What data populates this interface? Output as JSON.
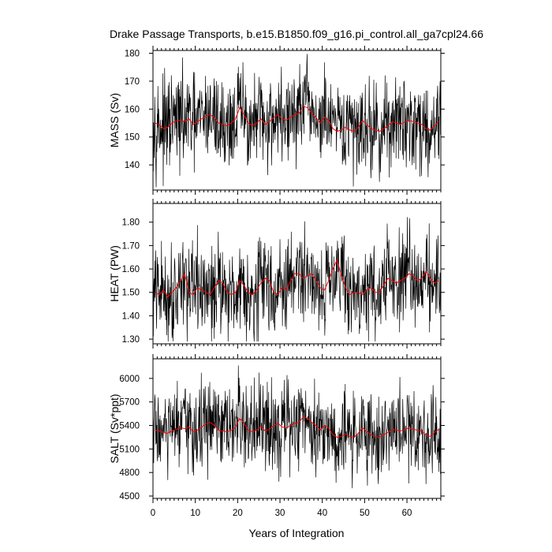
{
  "figure": {
    "title": "Drake Passage Transports, b.e15.B1850.f09_g16.pi_control.all_ga7cpl24.66",
    "xlabel": "Years of Integration"
  },
  "chart_data": [
    {
      "type": "line",
      "ylabel": "MASS (Sv)",
      "xlim": [
        0,
        68
      ],
      "ylim": [
        131,
        181
      ],
      "yticks": [
        140,
        150,
        160,
        170,
        180
      ],
      "ytick_labels": [
        "140",
        "150",
        "160",
        "170",
        "180"
      ],
      "xticks": [
        0,
        10,
        20,
        30,
        40,
        50,
        60
      ],
      "xtick_labels": [],
      "annual_mean": [
        155.0,
        154.5,
        153.0,
        153.5,
        155.0,
        155.8,
        156.0,
        155.5,
        156.5,
        154.5,
        155.5,
        156.5,
        157.5,
        158.0,
        157.0,
        155.0,
        154.5,
        154.0,
        155.0,
        156.5,
        160.5,
        158.0,
        155.0,
        154.0,
        155.0,
        156.5,
        154.5,
        155.5,
        157.0,
        158.0,
        156.5,
        156.0,
        157.0,
        158.0,
        158.5,
        161.0,
        160.5,
        158.5,
        157.0,
        155.0,
        157.0,
        156.0,
        153.0,
        152.0,
        152.5,
        153.5,
        152.5,
        152.0,
        153.5,
        156.0,
        154.5,
        153.0,
        152.5,
        152.0,
        153.0,
        154.0,
        155.5,
        155.0,
        154.5,
        155.5,
        156.0,
        155.5,
        155.0,
        154.5,
        153.0,
        152.5,
        154.0,
        155.5
      ],
      "monthly_range": [
        132,
        180
      ],
      "colors": {
        "monthly": "#000000",
        "annual_mean": "#ff0000"
      }
    },
    {
      "type": "line",
      "ylabel": "HEAT (PW)",
      "xlim": [
        0,
        68
      ],
      "ylim": [
        1.28,
        1.88
      ],
      "yticks": [
        1.3,
        1.4,
        1.5,
        1.6,
        1.7,
        1.8
      ],
      "ytick_labels": [
        "1.30",
        "1.40",
        "1.50",
        "1.60",
        "1.70",
        "1.80"
      ],
      "xticks": [
        0,
        10,
        20,
        30,
        40,
        50,
        60
      ],
      "xtick_labels": [],
      "annual_mean": [
        1.5,
        1.49,
        1.51,
        1.48,
        1.5,
        1.52,
        1.55,
        1.58,
        1.5,
        1.49,
        1.52,
        1.51,
        1.5,
        1.49,
        1.52,
        1.55,
        1.54,
        1.5,
        1.49,
        1.5,
        1.55,
        1.53,
        1.5,
        1.49,
        1.51,
        1.54,
        1.56,
        1.55,
        1.5,
        1.49,
        1.52,
        1.51,
        1.55,
        1.58,
        1.58,
        1.56,
        1.57,
        1.58,
        1.55,
        1.52,
        1.51,
        1.55,
        1.6,
        1.64,
        1.57,
        1.52,
        1.49,
        1.5,
        1.5,
        1.49,
        1.51,
        1.52,
        1.5,
        1.5,
        1.53,
        1.56,
        1.55,
        1.54,
        1.55,
        1.56,
        1.58,
        1.57,
        1.55,
        1.56,
        1.59,
        1.56,
        1.54,
        1.55
      ],
      "monthly_range": [
        1.29,
        1.87
      ],
      "colors": {
        "monthly": "#000000",
        "annual_mean": "#ff0000"
      }
    },
    {
      "type": "line",
      "ylabel": "SALT (Sv*ppt)",
      "xlim": [
        0,
        68
      ],
      "ylim": [
        4470,
        6250
      ],
      "yticks": [
        4500,
        4800,
        5100,
        5400,
        5700,
        6000
      ],
      "ytick_labels": [
        "4500",
        "4800",
        "5100",
        "5400",
        "5700",
        "6000"
      ],
      "xticks": [
        0,
        10,
        20,
        30,
        40,
        50,
        60
      ],
      "xtick_labels": [
        "0",
        "10",
        "20",
        "30",
        "40",
        "50",
        "60"
      ],
      "annual_mean": [
        5340,
        5330,
        5310,
        5300,
        5330,
        5350,
        5370,
        5360,
        5380,
        5320,
        5340,
        5380,
        5420,
        5440,
        5400,
        5340,
        5330,
        5320,
        5340,
        5380,
        5490,
        5430,
        5340,
        5320,
        5340,
        5390,
        5330,
        5350,
        5400,
        5430,
        5380,
        5370,
        5400,
        5430,
        5440,
        5510,
        5490,
        5440,
        5400,
        5340,
        5400,
        5370,
        5280,
        5250,
        5260,
        5290,
        5260,
        5250,
        5300,
        5370,
        5320,
        5280,
        5260,
        5250,
        5280,
        5310,
        5350,
        5340,
        5330,
        5350,
        5370,
        5350,
        5340,
        5330,
        5280,
        5260,
        5310,
        5350
      ],
      "monthly_range": [
        4520,
        6190
      ],
      "colors": {
        "monthly": "#000000",
        "annual_mean": "#ff0000"
      }
    }
  ]
}
